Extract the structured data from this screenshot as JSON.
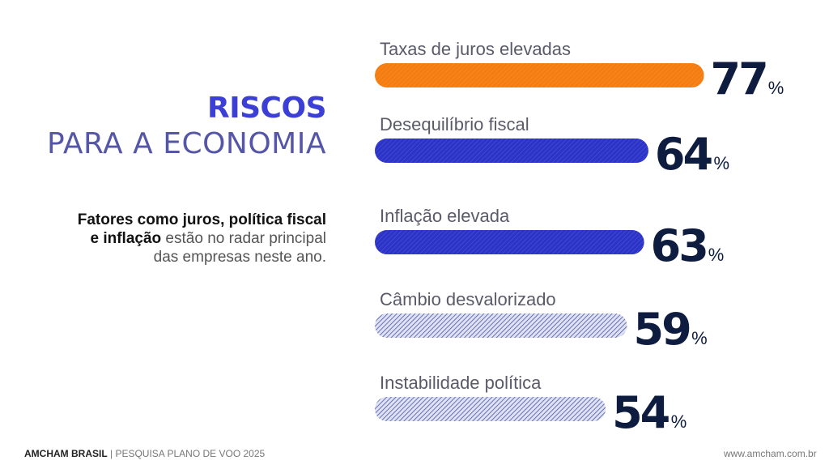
{
  "title": {
    "main": "RISCOS",
    "sub": "PARA A ECONOMIA"
  },
  "description": {
    "bold": "Fatores como juros, política fiscal e inflação",
    "rest": " estão no radar principal das empresas neste ano."
  },
  "chart_data": {
    "type": "bar",
    "orientation": "horizontal",
    "categories": [
      "Taxas de juros elevadas",
      "Desequilíbrio fiscal",
      "Inflação elevada",
      "Câmbio desvalorizado",
      "Instabilidade política"
    ],
    "values": [
      77,
      64,
      63,
      59,
      54
    ],
    "unit": "%",
    "colors": [
      "#f57c0e",
      "#2c33c8",
      "#2c33c8",
      "#9098c8",
      "#9098c8"
    ],
    "styles": [
      "solid",
      "solid",
      "solid",
      "hatched",
      "hatched"
    ]
  },
  "footer": {
    "brand": "AMCHAM BRASIL",
    "survey": " | PESQUISA PLANO DE VOO 2025",
    "url": "www.amcham.com.br"
  }
}
